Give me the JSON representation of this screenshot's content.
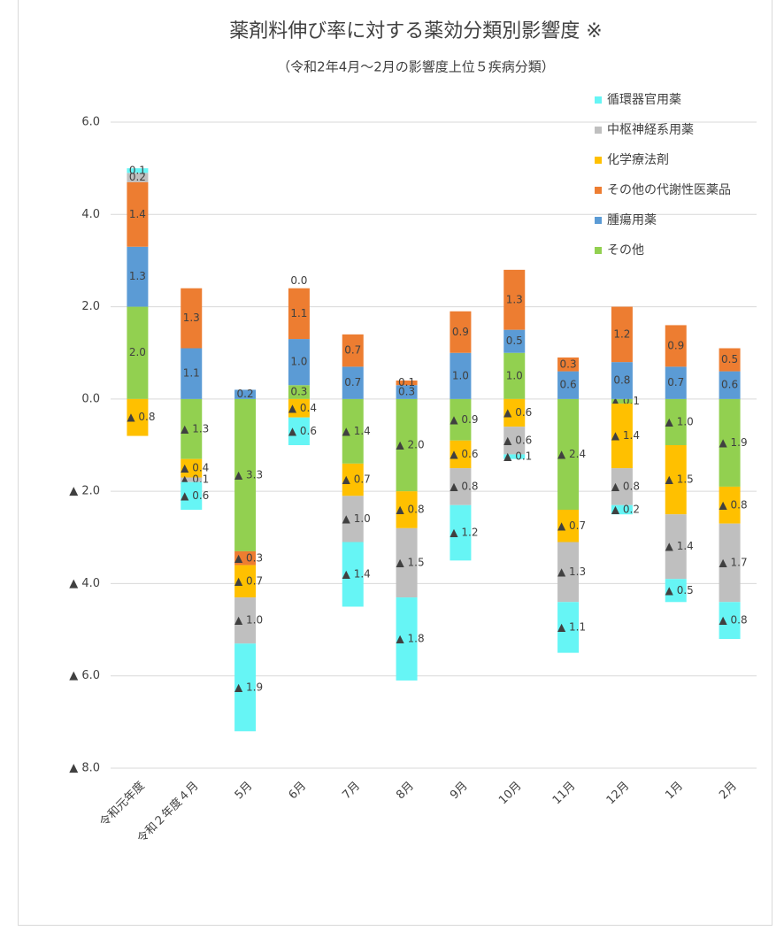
{
  "chart_data": {
    "type": "stacked_bar",
    "title": "薬剤料伸び率に対する薬効分類別影響度 ※",
    "subtitle": "（令和2年4月～2月の影響度上位５疾病分類）",
    "categories": [
      "令和元年度",
      "令和２年度４月",
      "5月",
      "6月",
      "7月",
      "8月",
      "9月",
      "10月",
      "11月",
      "12月",
      "1月",
      "2月"
    ],
    "ylim": [
      -8,
      6
    ],
    "yticks": [
      {
        "value": 6,
        "label": "6.0"
      },
      {
        "value": 4,
        "label": "4.0"
      },
      {
        "value": 2,
        "label": "2.0"
      },
      {
        "value": 0,
        "label": "0.0"
      },
      {
        "value": -2,
        "label": "▲ 2.0"
      },
      {
        "value": -4,
        "label": "▲ 4.0"
      },
      {
        "value": -6,
        "label": "▲ 6.0"
      },
      {
        "value": -8,
        "label": "▲ 8.0"
      }
    ],
    "grid": true,
    "legend": "top-right",
    "series": [
      {
        "name": "循環器官用薬",
        "color": "#66f5f5",
        "values": [
          0.1,
          -0.6,
          -1.9,
          -0.6,
          -1.4,
          -1.8,
          -1.2,
          -0.1,
          -1.1,
          -0.2,
          -0.5,
          -0.8
        ],
        "value_labels": [
          "0.1",
          "▲ 0.6",
          "▲ 1.9",
          "▲ 0.6",
          "▲ 1.4",
          "▲ 1.8",
          "▲ 1.2",
          "▲ 0.1",
          "▲ 1.1",
          "▲ 0.2",
          "▲ 0.5",
          "▲ 0.8"
        ]
      },
      {
        "name": "中枢神経系用薬",
        "color": "#bfbfbf",
        "values": [
          0.2,
          -0.1,
          -1.0,
          0.0,
          -1.0,
          -1.5,
          -0.8,
          -0.6,
          -1.3,
          -0.8,
          -1.4,
          -1.7
        ],
        "value_labels": [
          "0.2",
          "▲ 0.1",
          "▲ 1.0",
          "0.0",
          "▲ 1.0",
          "▲ 1.5",
          "▲ 0.8",
          "▲ 0.6",
          "▲ 1.3",
          "▲ 0.8",
          "▲ 1.4",
          "▲ 1.7"
        ]
      },
      {
        "name": "化学療法剤",
        "color": "#ffc000",
        "values": [
          -0.8,
          -0.4,
          -0.7,
          -0.4,
          -0.7,
          -0.8,
          -0.6,
          -0.6,
          -0.7,
          -1.4,
          -1.5,
          -0.8
        ],
        "value_labels": [
          "▲ 0.8",
          "▲ 0.4",
          "▲ 0.7",
          "▲ 0.4",
          "▲ 0.7",
          "▲ 0.8",
          "▲ 0.6",
          "▲ 0.6",
          "▲ 0.7",
          "▲ 1.4",
          "▲ 1.5",
          "▲ 0.8"
        ]
      },
      {
        "name": "その他の代謝性医薬品",
        "color": "#ed7d31",
        "values": [
          1.4,
          1.3,
          -0.3,
          1.1,
          0.7,
          0.1,
          0.9,
          1.3,
          0.3,
          1.2,
          0.9,
          0.5
        ],
        "value_labels": [
          "1.4",
          "1.3",
          "▲ 0.3",
          "1.1",
          "0.7",
          "0.1",
          "0.9",
          "1.3",
          "0.3",
          "1.2",
          "0.9",
          "0.5"
        ]
      },
      {
        "name": "腫瘍用薬",
        "color": "#5b9bd5",
        "values": [
          1.3,
          1.1,
          0.2,
          1.0,
          0.7,
          0.3,
          1.0,
          0.5,
          0.6,
          0.8,
          0.7,
          0.6
        ],
        "value_labels": [
          "1.3",
          "1.1",
          "0.2",
          "1.0",
          "0.7",
          "0.3",
          "1.0",
          "0.5",
          "0.6",
          "0.8",
          "0.7",
          "0.6"
        ]
      },
      {
        "name": "その他",
        "color": "#92d050",
        "values": [
          2.0,
          -1.3,
          -3.3,
          0.3,
          -1.4,
          -2.0,
          -0.9,
          1.0,
          -2.4,
          -0.1,
          -1.0,
          -1.9
        ],
        "value_labels": [
          "2.0",
          "▲ 1.3",
          "▲ 3.3",
          "0.3",
          "▲ 1.4",
          "▲ 2.0",
          "▲ 0.9",
          "1.0",
          "▲ 2.4",
          "▲ 0.1",
          "▲ 1.0",
          "▲ 1.9"
        ]
      }
    ]
  }
}
